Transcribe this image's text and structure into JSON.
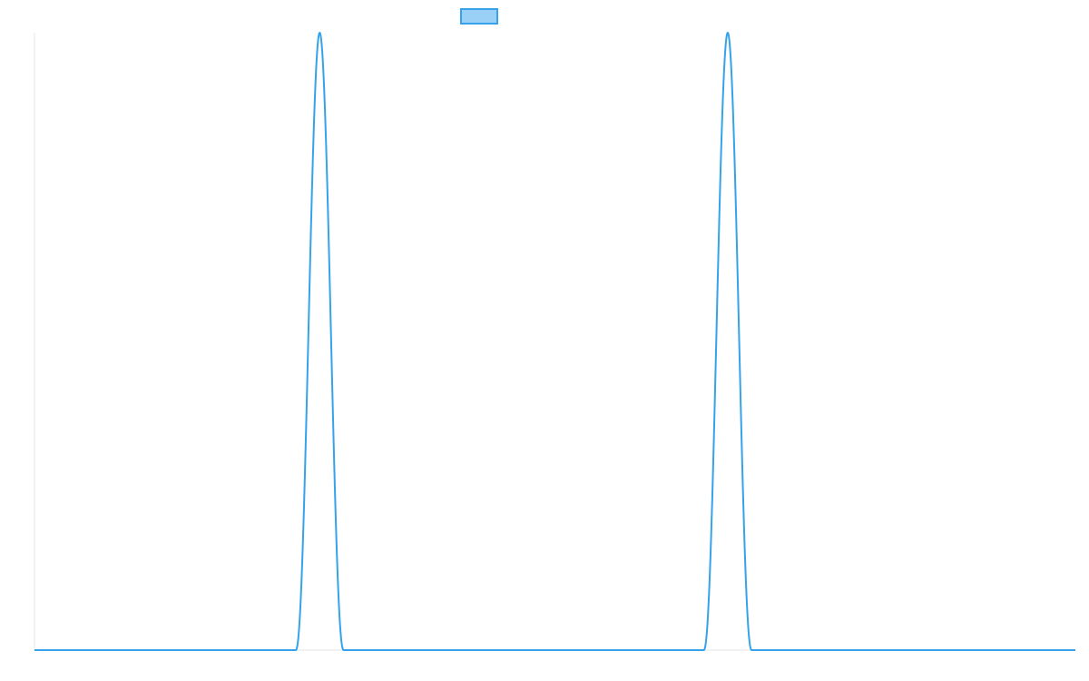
{
  "chart_data": {
    "type": "line",
    "title": "",
    "xlabel": "",
    "ylabel": "",
    "xlim": [
      0,
      1000
    ],
    "ylim": [
      0,
      1
    ],
    "grid": false,
    "legend": "top-center",
    "series": [
      {
        "name": "",
        "color": "#36a2eb",
        "fill_color": "#9ad0f5",
        "x": [
          0,
          255,
          258,
          261,
          264,
          267,
          270,
          273,
          276,
          279,
          282,
          285,
          288,
          291,
          294,
          295,
          1000
        ],
        "y": [
          0,
          0,
          0.15,
          0.45,
          0.75,
          0.95,
          1.0,
          0.95,
          0.75,
          0.45,
          0.15,
          0,
          0,
          0,
          0,
          0,
          0
        ]
      }
    ],
    "peaks": [
      274,
      666
    ]
  }
}
